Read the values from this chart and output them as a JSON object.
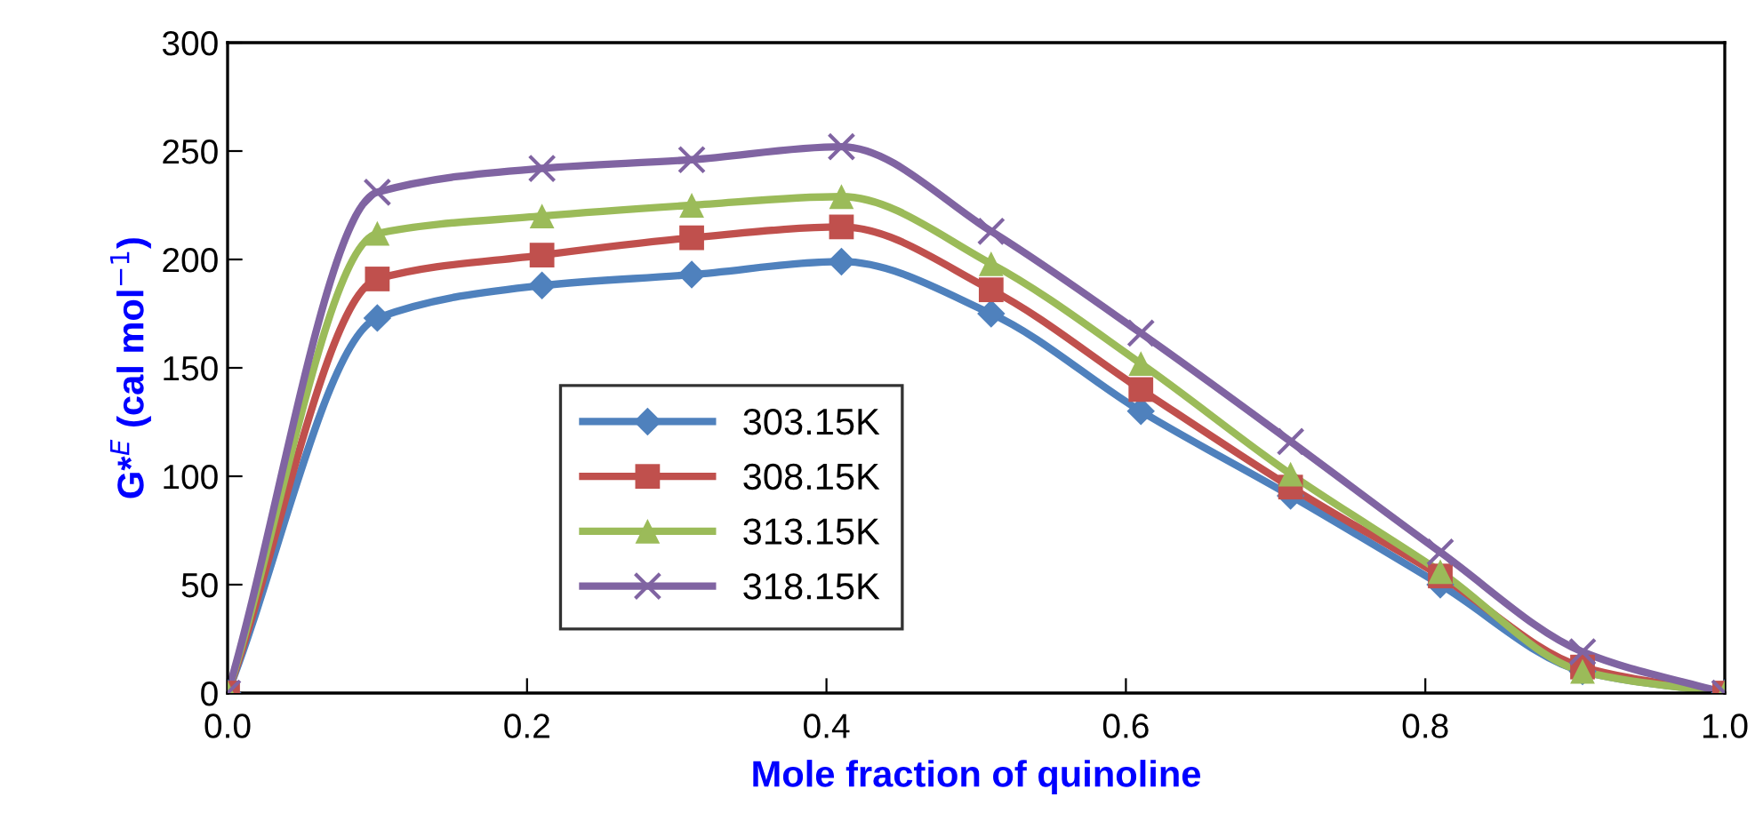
{
  "chart_data": {
    "type": "line",
    "xlabel": "Mole fraction of quinoline",
    "ylabel": "G*$^{E}$ (cal mol$^{−1}$)",
    "x": [
      0,
      0.1,
      0.21,
      0.31,
      0.41,
      0.51,
      0.61,
      0.71,
      0.81,
      0.905,
      1.0
    ],
    "series": [
      {
        "name": "303.15K",
        "color": "#4f81bd",
        "marker": "diamond",
        "values": [
          0,
          173,
          188,
          193,
          199,
          175,
          130,
          91,
          50,
          10,
          0
        ]
      },
      {
        "name": "308.15K",
        "color": "#c0504d",
        "marker": "square",
        "values": [
          0,
          191,
          202,
          210,
          215,
          186,
          140,
          95,
          54,
          12,
          0
        ]
      },
      {
        "name": "313.15K",
        "color": "#9bbb59",
        "marker": "triangle",
        "values": [
          0,
          212,
          220,
          225,
          229,
          198,
          152,
          101,
          56,
          10,
          0
        ]
      },
      {
        "name": "318.15K",
        "color": "#8064a2",
        "marker": "cross",
        "values": [
          0,
          231,
          242,
          246,
          252,
          213,
          166,
          116,
          65,
          19,
          0
        ]
      }
    ],
    "xlim": [
      0,
      1.0
    ],
    "xticks": [
      {
        "value": 0,
        "label": "0.0"
      },
      0.2,
      0.4,
      0.6,
      0.8,
      {
        "value": 1.0,
        "label": "1.0"
      }
    ],
    "ylim": [
      0,
      300
    ],
    "yticks": [
      0,
      50,
      100,
      150,
      200,
      250,
      300
    ],
    "grid": false,
    "legend": "bottom left",
    "line_style": "solid"
  }
}
